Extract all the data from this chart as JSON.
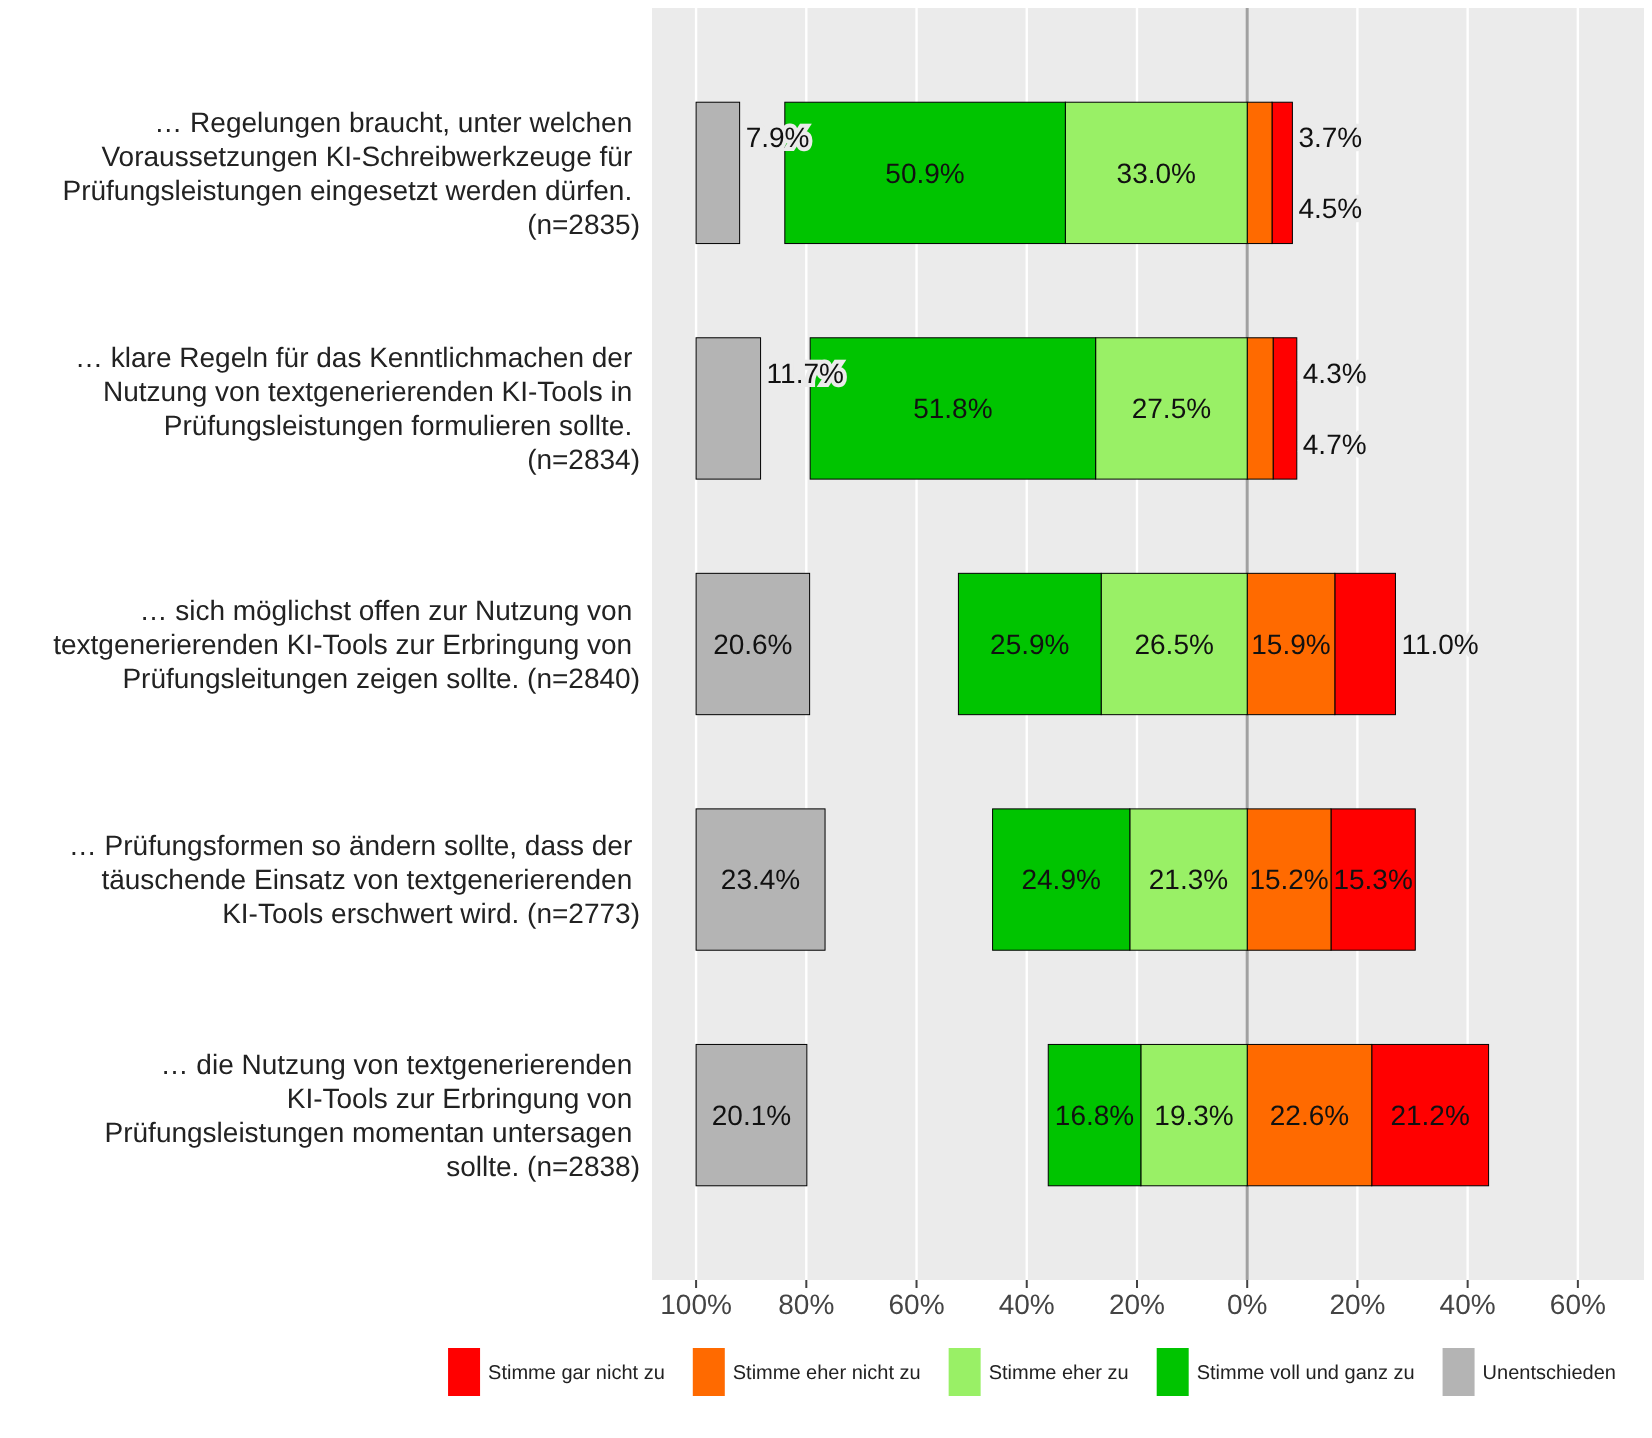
{
  "chart_data": {
    "type": "bar",
    "orientation": "horizontal",
    "categories": [
      "… Regelungen braucht, unter welchen Voraussetzungen KI-Schreibwerkzeuge für Prüfungsleistungen eingesetzt werden dürfen. (n=2835)",
      "… klare Regeln für das Kenntlichmachen der Nutzung von textgenerierenden KI-Tools in Prüfungsleistungen formulieren sollte. (n=2834)",
      "… sich möglichst offen zur Nutzung von textgenerierenden KI-Tools zur Erbringung von Prüfungsleitungen zeigen sollte. (n=2840)",
      "… Prüfungsformen so ändern sollte, dass der täuschende Einsatz von textgenerierenden KI-Tools erschwert wird. (n=2773)",
      "… die Nutzung von textgenerierenden KI-Tools zur Erbringung von Prüfungsleistungen momentan untersagen sollte. (n=2838)"
    ],
    "series": [
      {
        "name": "Stimme gar nicht zu",
        "color": "#ff0000",
        "values": [
          3.7,
          4.3,
          11.0,
          15.3,
          21.2
        ],
        "value_labels": [
          "3.7%",
          "4.3%",
          "11.0%",
          "15.3%",
          "21.2%"
        ],
        "base": [
          4.5,
          4.7,
          15.9,
          15.2,
          22.6
        ]
      },
      {
        "name": "Stimme eher nicht zu",
        "color": "#ff6a00",
        "values": [
          4.5,
          4.7,
          15.9,
          15.2,
          22.6
        ],
        "value_labels": [
          "4.5%",
          "4.7%",
          "15.9%",
          "15.2%",
          "22.6%"
        ],
        "base": [
          0,
          0,
          0,
          0,
          0
        ]
      },
      {
        "name": "Stimme eher zu",
        "color": "#99f066",
        "values": [
          33.0,
          27.5,
          26.5,
          21.3,
          19.3
        ],
        "value_labels": [
          "33.0%",
          "27.5%",
          "26.5%",
          "21.3%",
          "19.3%"
        ],
        "base": [
          -33.0,
          -27.5,
          -26.5,
          -21.3,
          -19.3
        ]
      },
      {
        "name": "Stimme voll und ganz zu",
        "color": "#00c400",
        "values": [
          50.9,
          51.8,
          25.9,
          24.9,
          16.8
        ],
        "value_labels": [
          "50.9%",
          "51.8%",
          "25.9%",
          "24.9%",
          "16.8%"
        ],
        "base": [
          -83.9,
          -79.3,
          -52.4,
          -46.2,
          -36.1
        ]
      },
      {
        "name": "Unentschieden",
        "color": "#b4b4b4",
        "values": [
          7.9,
          11.7,
          20.6,
          23.4,
          20.1
        ],
        "value_labels": [
          "7.9%",
          "11.7%",
          "20.6%",
          "23.4%",
          "20.1%"
        ],
        "base": [
          -100,
          -100,
          -100,
          -100,
          -100
        ]
      }
    ],
    "xlim": [
      -108,
      72
    ],
    "xticks": [
      {
        "value": -100,
        "label": "100%"
      },
      {
        "value": -80,
        "label": "80%"
      },
      {
        "value": -60,
        "label": "60%"
      },
      {
        "value": -40,
        "label": "40%"
      },
      {
        "value": -20,
        "label": "20%"
      },
      {
        "value": 0,
        "label": "0%"
      },
      {
        "value": 20,
        "label": "20%"
      },
      {
        "value": 40,
        "label": "40%"
      },
      {
        "value": 60,
        "label": "60%"
      }
    ],
    "ref_lines": [
      {
        "axis": "x",
        "value": 0,
        "color": "#a0a0a0"
      }
    ],
    "grid": "x",
    "legend": "bottom"
  }
}
